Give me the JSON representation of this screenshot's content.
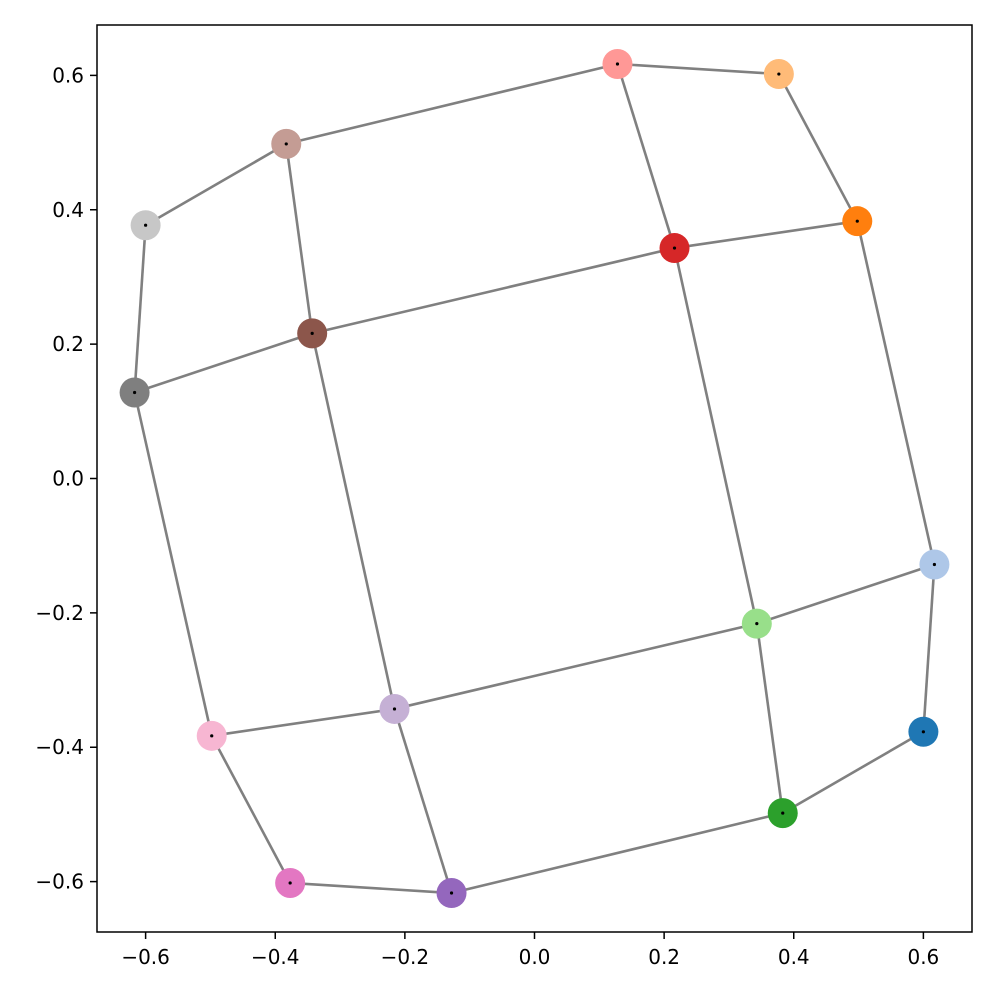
{
  "chart_data": {
    "type": "scatter",
    "title": "",
    "xlabel": "",
    "ylabel": "",
    "xlim": [
      -0.675,
      0.675
    ],
    "ylim": [
      -0.675,
      0.675
    ],
    "xticks": [
      -0.6,
      -0.4,
      -0.2,
      0.0,
      0.2,
      0.4,
      0.6
    ],
    "xtick_labels": [
      "−0.6",
      "−0.4",
      "−0.2",
      "0.0",
      "0.2",
      "0.4",
      "0.6"
    ],
    "yticks": [
      -0.6,
      -0.4,
      -0.2,
      0.0,
      0.2,
      0.4,
      0.6
    ],
    "ytick_labels": [
      "−0.6",
      "−0.4",
      "−0.2",
      "0.0",
      "0.2",
      "0.4",
      "0.6"
    ],
    "grid": false,
    "legend": false,
    "line_color": "#808080",
    "points": [
      {
        "x": 0.6,
        "y": -0.377,
        "color": "#1f77b4"
      },
      {
        "x": 0.617,
        "y": -0.128,
        "color": "#aec7e8"
      },
      {
        "x": 0.498,
        "y": 0.383,
        "color": "#ff7f0e"
      },
      {
        "x": 0.377,
        "y": 0.602,
        "color": "#ffbb78"
      },
      {
        "x": 0.383,
        "y": -0.498,
        "color": "#2ca02c"
      },
      {
        "x": 0.343,
        "y": -0.216,
        "color": "#98df8a"
      },
      {
        "x": 0.216,
        "y": 0.343,
        "color": "#d62728"
      },
      {
        "x": 0.128,
        "y": 0.617,
        "color": "#ff9896"
      },
      {
        "x": -0.128,
        "y": -0.617,
        "color": "#9467bd"
      },
      {
        "x": -0.216,
        "y": -0.343,
        "color": "#c5b0d5"
      },
      {
        "x": -0.343,
        "y": 0.216,
        "color": "#8c564b"
      },
      {
        "x": -0.383,
        "y": 0.498,
        "color": "#c49c94"
      },
      {
        "x": -0.377,
        "y": -0.602,
        "color": "#e377c2"
      },
      {
        "x": -0.498,
        "y": -0.383,
        "color": "#f7b6d2"
      },
      {
        "x": -0.617,
        "y": 0.128,
        "color": "#7f7f7f"
      },
      {
        "x": -0.6,
        "y": 0.377,
        "color": "#c7c7c7"
      }
    ],
    "edges": [
      [
        0,
        1
      ],
      [
        1,
        2
      ],
      [
        2,
        3
      ],
      [
        4,
        5
      ],
      [
        5,
        6
      ],
      [
        6,
        7
      ],
      [
        8,
        9
      ],
      [
        9,
        10
      ],
      [
        10,
        11
      ],
      [
        12,
        13
      ],
      [
        13,
        14
      ],
      [
        14,
        15
      ],
      [
        0,
        4
      ],
      [
        4,
        8
      ],
      [
        8,
        12
      ],
      [
        1,
        5
      ],
      [
        5,
        9
      ],
      [
        9,
        13
      ],
      [
        2,
        6
      ],
      [
        6,
        10
      ],
      [
        10,
        14
      ],
      [
        3,
        7
      ],
      [
        7,
        11
      ],
      [
        11,
        15
      ]
    ]
  }
}
